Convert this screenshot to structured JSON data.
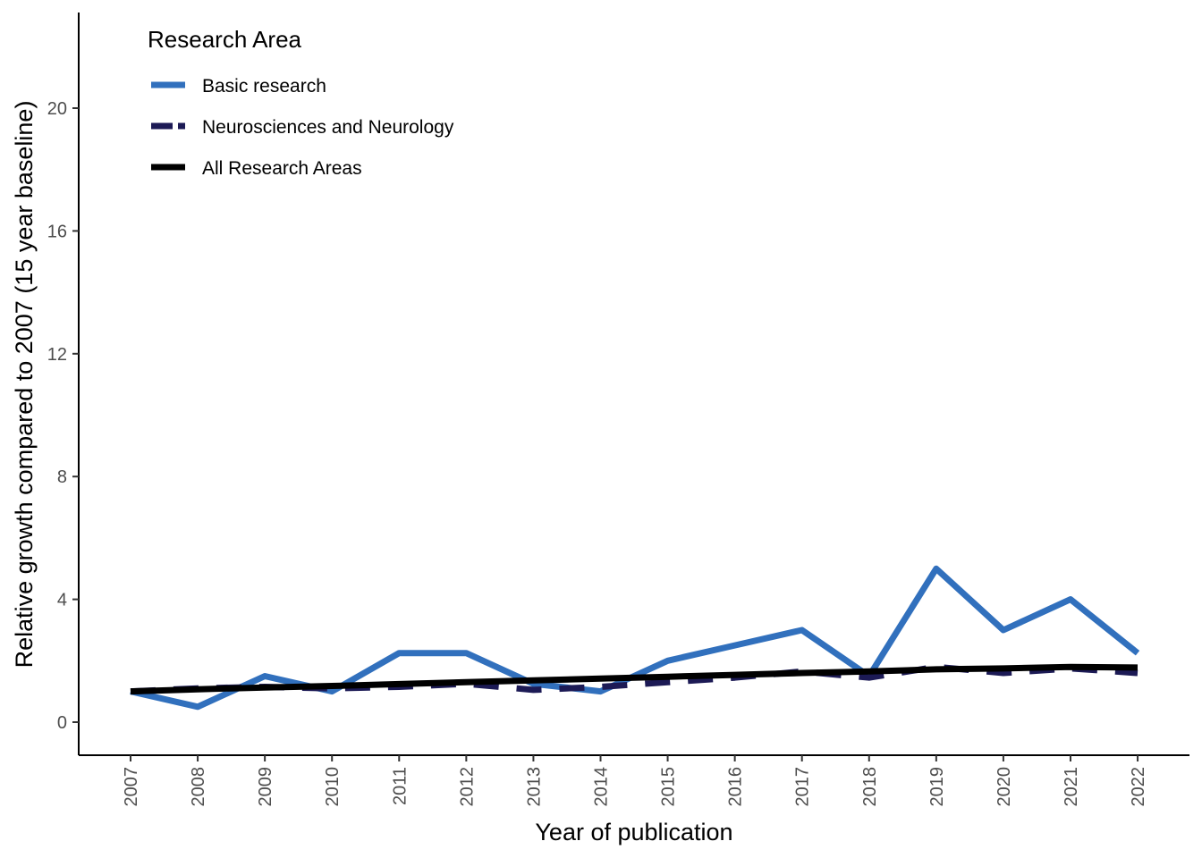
{
  "chart_data": {
    "type": "line",
    "xlabel": "Year of publication",
    "ylabel": "Relative growth compared to 2007 (15 year baseline)",
    "categories": [
      "2007",
      "2008",
      "2009",
      "2010",
      "2011",
      "2012",
      "2013",
      "2014",
      "2015",
      "2016",
      "2017",
      "2018",
      "2019",
      "2020",
      "2021",
      "2022"
    ],
    "ylim": [
      -1.1,
      23.1
    ],
    "yticks": [
      0,
      4,
      8,
      12,
      16,
      20
    ],
    "grid": false,
    "legend": {
      "title": "Research Area",
      "position": "top-left",
      "items": [
        "Basic research",
        "Neurosciences and Neurology",
        "All Research Areas"
      ]
    },
    "series": [
      {
        "name": "Basic research",
        "color": "#3170BD",
        "dash": "solid",
        "values": [
          1.0,
          0.5,
          1.5,
          1.0,
          2.25,
          2.25,
          1.25,
          1.0,
          2.0,
          2.5,
          3.0,
          1.5,
          5.0,
          3.0,
          4.0,
          2.25
        ]
      },
      {
        "name": "Neurosciences and Neurology",
        "color": "#1C1A55",
        "dash": "dashed",
        "values": [
          1.0,
          1.1,
          1.15,
          1.1,
          1.15,
          1.25,
          1.05,
          1.15,
          1.3,
          1.45,
          1.65,
          1.45,
          1.8,
          1.6,
          1.75,
          1.6
        ]
      },
      {
        "name": "All Research Areas",
        "color": "#000000",
        "dash": "solid",
        "values": [
          1.0,
          1.07,
          1.13,
          1.18,
          1.24,
          1.3,
          1.36,
          1.42,
          1.48,
          1.54,
          1.6,
          1.65,
          1.72,
          1.75,
          1.8,
          1.78
        ]
      }
    ]
  }
}
